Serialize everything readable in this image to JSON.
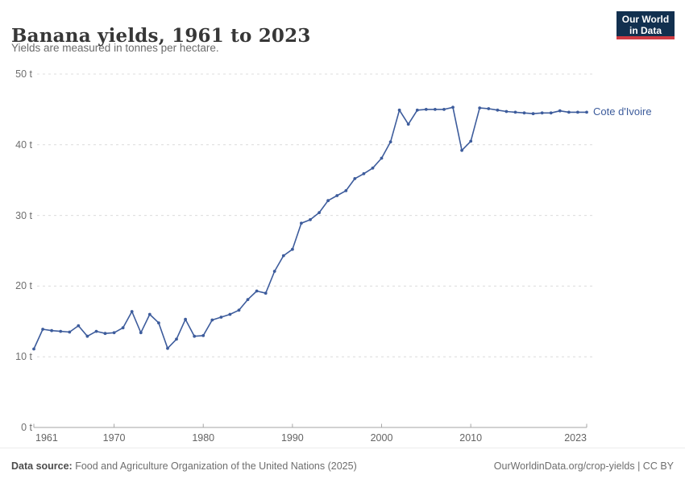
{
  "header": {
    "title": "Banana yields, 1961 to 2023",
    "subtitle": "Yields are measured in tonnes per hectare.",
    "logo": {
      "line1": "Our World",
      "line2": "in Data"
    }
  },
  "chart_data": {
    "type": "line",
    "title": "Banana yields, 1961 to 2023",
    "subtitle": "Yields are measured in tonnes per hectare.",
    "unit": "tonnes per hectare",
    "xlim": [
      1961,
      2023
    ],
    "ylim": [
      0,
      50
    ],
    "grid": "horizontal-dashed",
    "legend_position": "end-of-line-label",
    "xticks": [
      {
        "year": 1961,
        "label": "1961"
      },
      {
        "year": 1970,
        "label": "1970"
      },
      {
        "year": 1980,
        "label": "1980"
      },
      {
        "year": 1990,
        "label": "1990"
      },
      {
        "year": 2000,
        "label": "2000"
      },
      {
        "year": 2010,
        "label": "2010"
      },
      {
        "year": 2023,
        "label": "2023"
      }
    ],
    "yticks": [
      {
        "value": 0,
        "label": "0 t"
      },
      {
        "value": 10,
        "label": "10 t"
      },
      {
        "value": 20,
        "label": "20 t"
      },
      {
        "value": 30,
        "label": "30 t"
      },
      {
        "value": 40,
        "label": "40 t"
      },
      {
        "value": 50,
        "label": "50 t"
      }
    ],
    "x": [
      1961,
      1962,
      1963,
      1964,
      1965,
      1966,
      1967,
      1968,
      1969,
      1970,
      1971,
      1972,
      1973,
      1974,
      1975,
      1976,
      1977,
      1978,
      1979,
      1980,
      1981,
      1982,
      1983,
      1984,
      1985,
      1986,
      1987,
      1988,
      1989,
      1990,
      1991,
      1992,
      1993,
      1994,
      1995,
      1996,
      1997,
      1998,
      1999,
      2000,
      2001,
      2002,
      2003,
      2004,
      2005,
      2006,
      2007,
      2008,
      2009,
      2010,
      2011,
      2012,
      2013,
      2014,
      2015,
      2016,
      2017,
      2018,
      2019,
      2020,
      2021,
      2022,
      2023
    ],
    "series": [
      {
        "name": "Cote d'Ivoire",
        "color": "#3d5c9c",
        "values": [
          11.1,
          13.9,
          13.7,
          13.6,
          13.5,
          14.4,
          12.9,
          13.6,
          13.3,
          13.4,
          14.1,
          16.4,
          13.4,
          16.0,
          14.8,
          11.2,
          12.5,
          15.3,
          12.9,
          13.0,
          15.2,
          15.6,
          16.0,
          16.6,
          18.1,
          19.3,
          19.0,
          22.1,
          24.3,
          25.2,
          28.9,
          29.4,
          30.4,
          32.1,
          32.8,
          33.5,
          35.2,
          35.9,
          36.7,
          38.1,
          40.4,
          44.9,
          42.9,
          44.9,
          45.0,
          45.0,
          45.0,
          45.3,
          39.2,
          40.5,
          45.2,
          45.1,
          44.9,
          44.7,
          44.6,
          44.5,
          44.4,
          44.5,
          44.5,
          44.8,
          44.6,
          44.6,
          44.6
        ]
      }
    ]
  },
  "footer": {
    "source_label": "Data source:",
    "source_text": "Food and Agriculture Organization of the United Nations (2025)",
    "link_text": "OurWorldinData.org/crop-yields | CC BY"
  },
  "colors": {
    "line": "#3d5c9c",
    "grid": "#dcdcdc",
    "axis": "#a6a6a6",
    "tick_text": "#6e6e6e",
    "logo_bg": "#12304f",
    "logo_red": "#cf3b43"
  }
}
